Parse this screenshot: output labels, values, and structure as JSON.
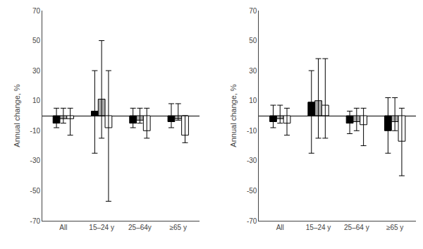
{
  "chart_data": [
    {
      "type": "bar",
      "categories": [
        "All",
        "15–24 y",
        "25–64y",
        "≥65 y"
      ],
      "series": [
        {
          "color": "#000000",
          "values": [
            -5,
            3,
            -5,
            -4
          ],
          "ci_lo": [
            -8,
            -25,
            -8,
            -8
          ],
          "ci_hi": [
            5,
            30,
            5,
            8
          ]
        },
        {
          "color": "#aaaaaa",
          "values": [
            -2,
            11,
            -3,
            -2
          ],
          "ci_lo": [
            -5,
            -15,
            -5,
            -3
          ],
          "ci_hi": [
            5,
            50,
            5,
            8
          ]
        },
        {
          "color": "#ffffff",
          "values": [
            -2,
            -8,
            -10,
            -13
          ],
          "ci_lo": [
            -13,
            -57,
            -15,
            -18
          ],
          "ci_hi": [
            5,
            30,
            5,
            0
          ]
        }
      ],
      "ylabel": "Annual change, %",
      "ylim": [
        -70,
        70
      ],
      "yticks": [
        -70,
        -50,
        -30,
        -10,
        10,
        30,
        50,
        70
      ],
      "grid": false
    },
    {
      "type": "bar",
      "categories": [
        "All",
        "15–24 y",
        "25–64 y",
        "≥65 y"
      ],
      "series": [
        {
          "color": "#000000",
          "values": [
            -4,
            9,
            -5,
            -10
          ],
          "ci_lo": [
            -8,
            -25,
            -12,
            -25
          ],
          "ci_hi": [
            7,
            30,
            3,
            12
          ]
        },
        {
          "color": "#aaaaaa",
          "values": [
            -2,
            10,
            -4,
            -4
          ],
          "ci_lo": [
            -5,
            -15,
            -10,
            -10
          ],
          "ci_hi": [
            7,
            38,
            5,
            12
          ]
        },
        {
          "color": "#ffffff",
          "values": [
            -5,
            7,
            -6,
            -17
          ],
          "ci_lo": [
            -13,
            -15,
            -20,
            -40
          ],
          "ci_hi": [
            5,
            38,
            5,
            5
          ]
        }
      ],
      "ylabel": "Annual change, %",
      "ylim": [
        -70,
        70
      ],
      "yticks": [
        -70,
        -50,
        -30,
        -10,
        10,
        30,
        50,
        70
      ],
      "grid": false
    }
  ]
}
